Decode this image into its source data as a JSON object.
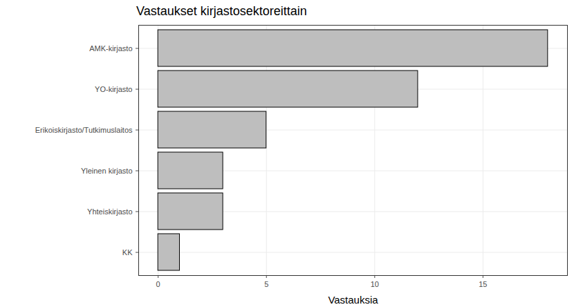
{
  "chart_data": {
    "type": "bar",
    "title": "Vastaukset kirjastosektoreittain",
    "orientation": "horizontal",
    "categories": [
      "AMK-kirjasto",
      "YO-kirjasto",
      "Erikoiskirjasto/Tutkimuslaitos",
      "Yleinen kirjasto",
      "Yhteiskirjasto",
      "KK"
    ],
    "values": [
      18,
      12,
      5,
      3,
      3,
      1
    ],
    "color": "#bebebe",
    "x_label": "Vastauksia",
    "xlim": [
      -0.9,
      18.9
    ],
    "xticks": [
      0,
      5,
      10,
      15
    ],
    "grid": true
  }
}
